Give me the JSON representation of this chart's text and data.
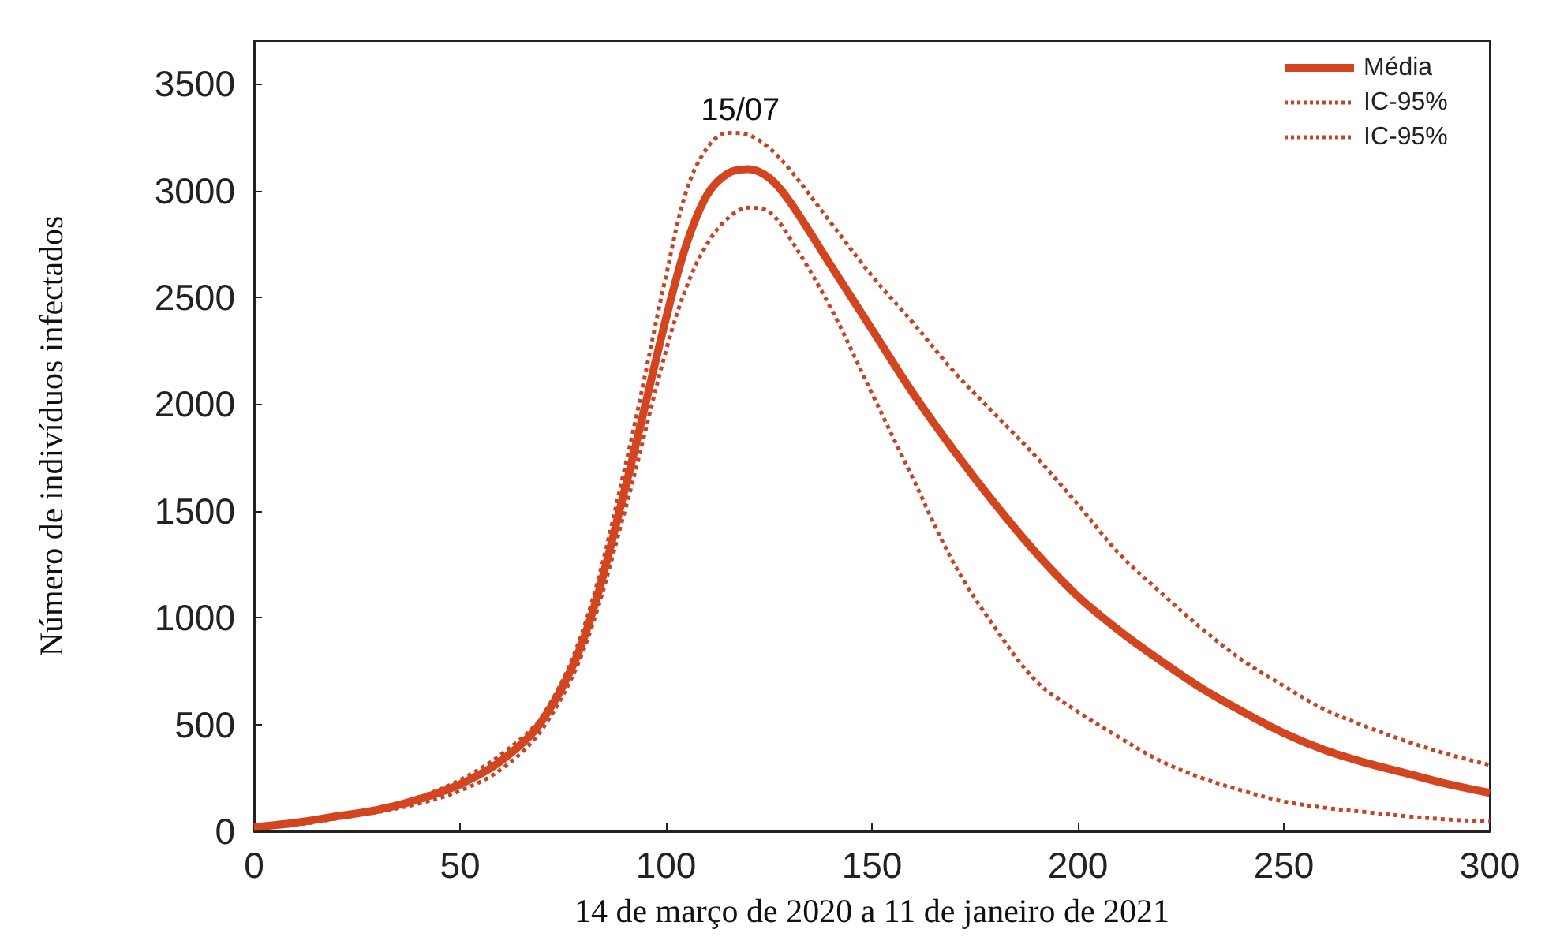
{
  "chart_data": {
    "type": "line",
    "xlabel": "14 de março de 2020 a 11 de janeiro de 2021",
    "ylabel": "Número de indivíduos infectados",
    "x": [
      0,
      10,
      20,
      30,
      40,
      50,
      60,
      70,
      80,
      90,
      100,
      105,
      110,
      115,
      120,
      125,
      130,
      140,
      150,
      160,
      170,
      180,
      190,
      200,
      210,
      220,
      230,
      240,
      250,
      260,
      270,
      280,
      290,
      300
    ],
    "series": [
      {
        "name": "Média",
        "color": "#d2451e",
        "line_style": "solid",
        "values": [
          20,
          40,
          70,
          100,
          150,
          220,
          330,
          520,
          900,
          1600,
          2400,
          2750,
          2980,
          3080,
          3100,
          3060,
          2950,
          2650,
          2350,
          2050,
          1780,
          1530,
          1300,
          1100,
          940,
          800,
          670,
          560,
          460,
          380,
          320,
          270,
          220,
          180
        ]
      },
      {
        "name": "IC-95%",
        "color": "#c4442a",
        "line_style": "dotted",
        "values": [
          20,
          40,
          75,
          110,
          160,
          240,
          360,
          540,
          950,
          1700,
          2600,
          3000,
          3200,
          3270,
          3260,
          3200,
          3100,
          2850,
          2600,
          2380,
          2150,
          1950,
          1750,
          1530,
          1300,
          1120,
          950,
          800,
          680,
          570,
          490,
          420,
          360,
          310
        ]
      },
      {
        "name": "IC-95%",
        "color": "#c4442a",
        "line_style": "dotted",
        "values": [
          15,
          30,
          60,
          90,
          130,
          190,
          290,
          480,
          850,
          1500,
          2250,
          2550,
          2750,
          2870,
          2920,
          2900,
          2780,
          2450,
          2050,
          1650,
          1250,
          950,
          700,
          560,
          440,
          330,
          250,
          190,
          140,
          110,
          90,
          70,
          55,
          45
        ]
      }
    ],
    "annotations": [
      {
        "text": "15/07",
        "x": 115,
        "y": 3270
      }
    ],
    "xlim": [
      0,
      300
    ],
    "xticks": [
      0,
      50,
      100,
      150,
      200,
      250,
      300
    ],
    "ylim": [
      0,
      3700
    ],
    "yticks": [
      0,
      500,
      1000,
      1500,
      2000,
      2500,
      3000,
      3500
    ],
    "legend": "top right",
    "grid": false,
    "marker": "none"
  }
}
